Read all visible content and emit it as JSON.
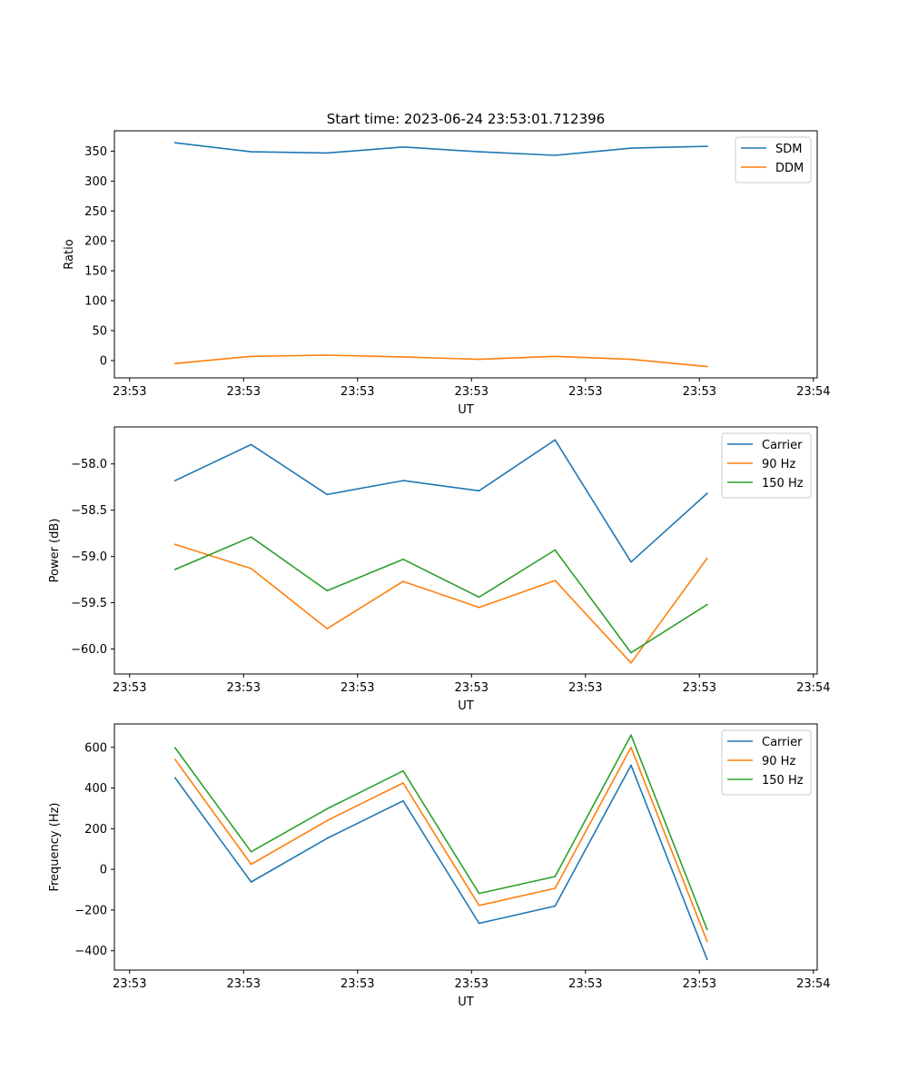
{
  "figure": {
    "title": "Start time: 2023-06-24 23:53:01.712396"
  },
  "chart_data": [
    {
      "type": "line",
      "title": "Start time: 2023-06-24 23:53:01.712396",
      "xlabel": "UT",
      "ylabel": "Ratio",
      "x": [
        1,
        2,
        3,
        4,
        5,
        6,
        7,
        8
      ],
      "xlim": [
        0.2,
        9.45
      ],
      "xticks": [
        0.4,
        1.9,
        3.4,
        4.9,
        6.4,
        7.9,
        9.4
      ],
      "xtick_labels": [
        "23:53",
        "23:53",
        "23:53",
        "23:53",
        "23:53",
        "23:53",
        "23:54"
      ],
      "ylim": [
        -29,
        384
      ],
      "yticks": [
        0,
        50,
        100,
        150,
        200,
        250,
        300,
        350
      ],
      "ytick_labels": [
        "0",
        "50",
        "100",
        "150",
        "200",
        "250",
        "300",
        "350"
      ],
      "grid": false,
      "legend_position": "upper right",
      "series": [
        {
          "name": "SDM",
          "color": "#1f77b4",
          "values": [
            364,
            349,
            347,
            357,
            349,
            343,
            355,
            358
          ]
        },
        {
          "name": "DDM",
          "color": "#ff7f0e",
          "values": [
            -5,
            7,
            9,
            6,
            2,
            7,
            2,
            -10
          ]
        }
      ]
    },
    {
      "type": "line",
      "title": "",
      "xlabel": "UT",
      "ylabel": "Power (dB)",
      "x": [
        1,
        2,
        3,
        4,
        5,
        6,
        7,
        8
      ],
      "xlim": [
        0.2,
        9.45
      ],
      "xticks": [
        0.4,
        1.9,
        3.4,
        4.9,
        6.4,
        7.9,
        9.4
      ],
      "xtick_labels": [
        "23:53",
        "23:53",
        "23:53",
        "23:53",
        "23:53",
        "23:53",
        "23:54"
      ],
      "ylim": [
        -60.27,
        -57.6
      ],
      "yticks": [
        -60.0,
        -59.5,
        -59.0,
        -58.5,
        -58.0
      ],
      "ytick_labels": [
        "−60.0",
        "−59.5",
        "−59.0",
        "−58.5",
        "−58.0"
      ],
      "grid": false,
      "legend_position": "upper right",
      "series": [
        {
          "name": "Carrier",
          "color": "#1f77b4",
          "values": [
            -58.18,
            -57.79,
            -58.33,
            -58.18,
            -58.29,
            -57.74,
            -59.06,
            -58.32
          ]
        },
        {
          "name": "90 Hz",
          "color": "#ff7f0e",
          "values": [
            -58.87,
            -59.13,
            -59.78,
            -59.27,
            -59.55,
            -59.26,
            -60.15,
            -59.02
          ]
        },
        {
          "name": "150 Hz",
          "color": "#2ca02c",
          "values": [
            -59.14,
            -58.79,
            -59.37,
            -59.03,
            -59.44,
            -58.93,
            -60.04,
            -59.52
          ]
        }
      ]
    },
    {
      "type": "line",
      "title": "",
      "xlabel": "UT",
      "ylabel": "Frequency (Hz)",
      "x": [
        1,
        2,
        3,
        4,
        5,
        6,
        7,
        8
      ],
      "xlim": [
        0.2,
        9.45
      ],
      "xticks": [
        0.4,
        1.9,
        3.4,
        4.9,
        6.4,
        7.9,
        9.4
      ],
      "xtick_labels": [
        "23:53",
        "23:53",
        "23:53",
        "23:53",
        "23:53",
        "23:53",
        "23:54"
      ],
      "ylim": [
        -495,
        715
      ],
      "yticks": [
        -400,
        -200,
        0,
        200,
        400,
        600
      ],
      "ytick_labels": [
        "−400",
        "−200",
        "0",
        "200",
        "400",
        "600"
      ],
      "grid": false,
      "legend_position": "upper right",
      "series": [
        {
          "name": "Carrier",
          "color": "#1f77b4",
          "values": [
            450,
            -62,
            153,
            337,
            -265,
            -180,
            512,
            -442
          ]
        },
        {
          "name": "90 Hz",
          "color": "#ff7f0e",
          "values": [
            540,
            25,
            240,
            425,
            -177,
            -93,
            600,
            -353
          ]
        },
        {
          "name": "150 Hz",
          "color": "#2ca02c",
          "values": [
            597,
            87,
            298,
            484,
            -118,
            -35,
            660,
            -295
          ]
        }
      ]
    }
  ]
}
